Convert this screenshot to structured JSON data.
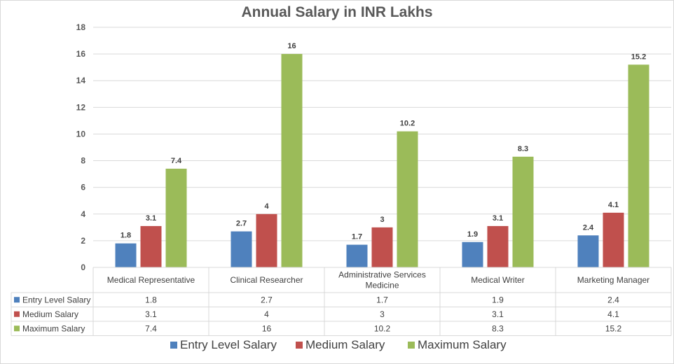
{
  "chart_data": {
    "type": "bar",
    "title": "Annual Salary in INR Lakhs",
    "xlabel": "",
    "ylabel": "",
    "ylim": [
      0,
      18
    ],
    "yticks": [
      0,
      2,
      4,
      6,
      8,
      10,
      12,
      14,
      16,
      18
    ],
    "grid": true,
    "legend_position": "bottom",
    "categories": [
      "Medical Representative",
      "Clinical Researcher",
      "Administrative Services Medicine",
      "Medical Writer",
      "Marketing Manager"
    ],
    "category_lines": [
      [
        "Medical Representative"
      ],
      [
        "Clinical Researcher"
      ],
      [
        "Administrative Services",
        "Medicine"
      ],
      [
        "Medical Writer"
      ],
      [
        "Marketing Manager"
      ]
    ],
    "series": [
      {
        "name": "Entry Level Salary",
        "color": "#4f81bd",
        "values": [
          1.8,
          2.7,
          1.7,
          1.9,
          2.4
        ]
      },
      {
        "name": "Medium Salary",
        "color": "#c0504d",
        "values": [
          3.1,
          4,
          3,
          3.1,
          4.1
        ]
      },
      {
        "name": "Maximum Salary",
        "color": "#9bbb59",
        "values": [
          7.4,
          16,
          10.2,
          8.3,
          15.2
        ]
      }
    ],
    "data_table": true
  }
}
